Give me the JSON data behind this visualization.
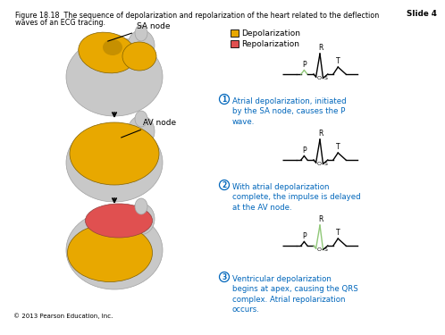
{
  "title_line1": "Figure 18.18  The sequence of depolarization and repolarization of the heart related to the deflection",
  "title_line2": "waves of an ECG tracing.",
  "slide_label": "Slide 4",
  "legend_depolarization": "Depolarization",
  "legend_repolarization": "Repolarization",
  "legend_depol_color": "#E8A800",
  "legend_repol_color": "#E05050",
  "label_sa": "SA node",
  "label_av": "AV node",
  "caption1_circle": "1",
  "caption1_text": "Atrial depolarization, initiated\nby the SA node, causes the P\nwave.",
  "caption2_circle": "2",
  "caption2_text": "With atrial depolarization\ncomplete, the impulse is delayed\nat the AV node.",
  "caption3_circle": "3",
  "caption3_text": "Ventricular depolarization\nbegins at apex, causing the QRS\ncomplex. Atrial repolarization\noccurs.",
  "copyright": "© 2013 Pearson Education, Inc.",
  "caption_color": "#0066BB",
  "bg_color": "#FFFFFF",
  "ecg_color_black": "#000000",
  "ecg_color_green": "#90C878",
  "text_color": "#000000",
  "title_fontsize": 5.8,
  "label_fontsize": 6.5,
  "caption_fontsize": 6.2,
  "copyright_fontsize": 5.0,
  "heart_gray": "#C8C8C8",
  "heart_gray_dark": "#A0A0A0",
  "heart_tan": "#C8A060",
  "heart_pink": "#D07878"
}
